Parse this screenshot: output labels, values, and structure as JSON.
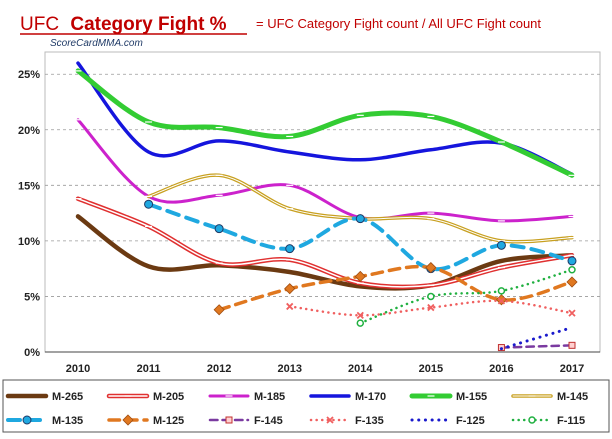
{
  "header": {
    "title_prefix": "UFC",
    "title_bold": "Category Fight %",
    "subtitle": "= UFC Category Fight count / All UFC Fight count",
    "site": "ScoreCardMMA.com"
  },
  "chart_data": {
    "type": "line",
    "title": "UFC Category Fight %",
    "subtitle": "= UFC Category Fight count / All UFC Fight count",
    "xlabel": "",
    "ylabel": "",
    "x": [
      2010,
      2011,
      2012,
      2013,
      2014,
      2015,
      2016,
      2017
    ],
    "ylim": [
      0,
      27
    ],
    "yticks": [
      0,
      5,
      10,
      15,
      20,
      25
    ],
    "ytick_labels": [
      "0%",
      "5%",
      "10%",
      "15%",
      "20%",
      "25%"
    ],
    "grid": true,
    "legend_position": "bottom",
    "series": [
      {
        "name": "M-265",
        "color": "#6b3a12",
        "dash": "solid",
        "marker": "none",
        "width": 4.5,
        "values": [
          12.2,
          7.7,
          7.8,
          7.2,
          5.9,
          6.0,
          8.2,
          8.7
        ]
      },
      {
        "name": "M-205",
        "color": "#e03030",
        "dash": "double",
        "marker": "dash",
        "width": 4.5,
        "values": [
          13.8,
          11.3,
          8.0,
          8.3,
          6.2,
          6.0,
          7.6,
          8.7
        ]
      },
      {
        "name": "M-185",
        "color": "#cc22cc",
        "dash": "solid",
        "marker": "dash",
        "width": 3,
        "values": [
          20.9,
          14.0,
          14.1,
          15.0,
          12.1,
          12.5,
          11.8,
          12.2
        ]
      },
      {
        "name": "M-170",
        "color": "#1515dd",
        "dash": "solid",
        "marker": "none",
        "width": 3.5,
        "values": [
          26.0,
          18.0,
          19.0,
          18.0,
          17.3,
          18.2,
          18.8,
          16.0
        ]
      },
      {
        "name": "M-155",
        "color": "#33cc33",
        "dash": "solid",
        "marker": "dash",
        "width": 5,
        "values": [
          25.3,
          20.7,
          20.2,
          19.4,
          21.3,
          21.2,
          18.9,
          15.9
        ]
      },
      {
        "name": "M-145",
        "color": "#c8a020",
        "dash": "double",
        "marker": "dash",
        "width": 3.5,
        "values": [
          null,
          14.0,
          15.9,
          12.9,
          12.0,
          12.0,
          10.0,
          10.3
        ]
      },
      {
        "name": "M-135",
        "color": "#1fa8e0",
        "dash": "dashed",
        "marker": "circle",
        "width": 4,
        "values": [
          null,
          13.3,
          11.1,
          9.3,
          12.0,
          7.5,
          9.6,
          8.2
        ]
      },
      {
        "name": "M-125",
        "color": "#e07820",
        "dash": "dashed",
        "marker": "diamond",
        "width": 3.5,
        "values": [
          null,
          null,
          3.8,
          5.7,
          6.8,
          7.6,
          4.7,
          6.3
        ]
      },
      {
        "name": "F-145",
        "color": "#7a3aa0",
        "dash": "dashed",
        "marker": "square",
        "width": 2.5,
        "values": [
          null,
          null,
          null,
          null,
          null,
          null,
          0.4,
          0.6
        ]
      },
      {
        "name": "F-135",
        "color": "#f06060",
        "dash": "dotted",
        "marker": "x",
        "width": 2.5,
        "values": [
          null,
          null,
          null,
          4.1,
          3.3,
          4.0,
          4.6,
          3.5
        ]
      },
      {
        "name": "F-125",
        "color": "#1a1acc",
        "dash": "dotted",
        "marker": "none",
        "width": 3,
        "values": [
          null,
          null,
          null,
          null,
          null,
          null,
          0.3,
          2.2
        ]
      },
      {
        "name": "F-115",
        "color": "#20b040",
        "dash": "dotted",
        "marker": "hollow-circle",
        "width": 2.5,
        "values": [
          null,
          null,
          null,
          null,
          2.6,
          5.0,
          5.5,
          7.4
        ]
      }
    ]
  }
}
